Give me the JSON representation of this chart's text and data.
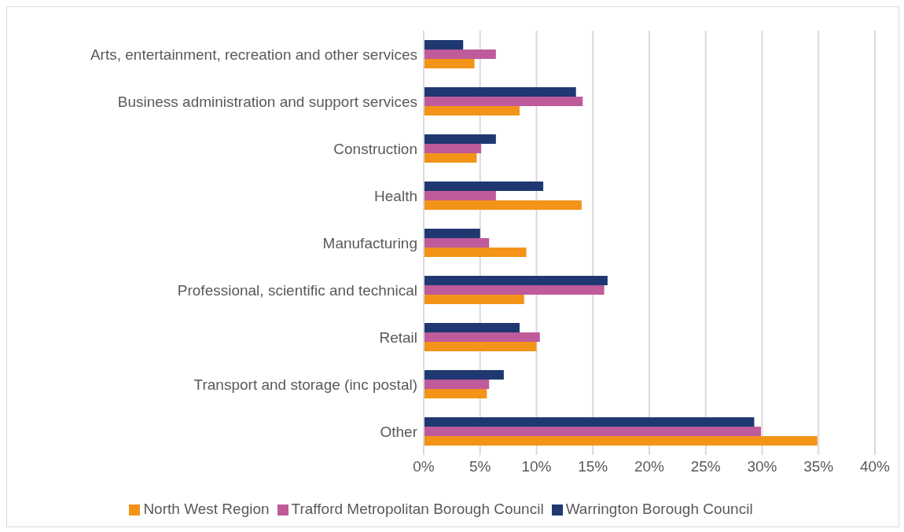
{
  "chart_data": {
    "type": "bar",
    "orientation": "horizontal",
    "categories": [
      "Arts, entertainment, recreation and other services",
      "Business administration and support services",
      "Construction",
      "Health",
      "Manufacturing",
      "Professional, scientific and technical",
      "Retail",
      "Transport and storage (inc postal)",
      "Other"
    ],
    "series": [
      {
        "name": "Warrington Borough Council",
        "color": "#1f3871",
        "values": [
          3.5,
          13.5,
          6.4,
          10.6,
          5.0,
          16.3,
          8.5,
          7.1,
          29.3
        ]
      },
      {
        "name": "Trafford Metropolitan Borough Council",
        "color": "#bf5b9a",
        "values": [
          6.4,
          14.1,
          5.1,
          6.4,
          5.8,
          16.0,
          10.3,
          5.8,
          29.9
        ]
      },
      {
        "name": "North West Region",
        "color": "#f39318",
        "values": [
          4.5,
          8.5,
          4.7,
          14.0,
          9.1,
          8.9,
          10.0,
          5.6,
          34.9
        ]
      }
    ],
    "xlim": [
      0,
      40
    ],
    "xticks": [
      {
        "value": 0,
        "label": "0%"
      },
      {
        "value": 5,
        "label": "5%"
      },
      {
        "value": 10,
        "label": "10%"
      },
      {
        "value": 15,
        "label": "15%"
      },
      {
        "value": 20,
        "label": "20%"
      },
      {
        "value": 25,
        "label": "25%"
      },
      {
        "value": 30,
        "label": "30%"
      },
      {
        "value": 35,
        "label": "35%"
      },
      {
        "value": 40,
        "label": "40%"
      }
    ],
    "grid": "x",
    "legend": "bottom"
  }
}
